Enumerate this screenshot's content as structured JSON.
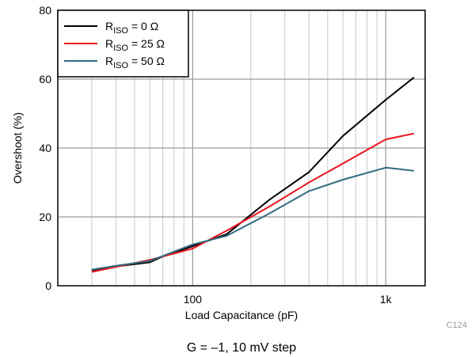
{
  "chart_data": {
    "type": "line",
    "title": "",
    "xlabel": "Load Capacitance (pF)",
    "ylabel": "Overshoot (%)",
    "x_scale": "log",
    "xlim": [
      20,
      1600
    ],
    "ylim": [
      0,
      80
    ],
    "x_ticks": [
      {
        "value": 100,
        "label": "100"
      },
      {
        "value": 1000,
        "label": "1k"
      }
    ],
    "y_ticks": [
      0,
      20,
      40,
      60,
      80
    ],
    "grid": true,
    "legend_position": "top-left",
    "series": [
      {
        "name_main": "R",
        "name_sub": "ISO",
        "name_rest": " = 0 Ω",
        "color": "#000000",
        "points": [
          [
            30,
            4.5
          ],
          [
            40,
            5.6
          ],
          [
            60,
            6.8
          ],
          [
            70,
            8.5
          ],
          [
            100,
            11.5
          ],
          [
            150,
            15.0
          ],
          [
            250,
            25.0
          ],
          [
            400,
            33.0
          ],
          [
            600,
            43.5
          ],
          [
            1000,
            54.0
          ],
          [
            1400,
            60.5
          ]
        ]
      },
      {
        "name_main": "R",
        "name_sub": "ISO",
        "name_rest": " = 25 Ω",
        "color": "#e8141e",
        "points": [
          [
            30,
            4.0
          ],
          [
            40,
            5.5
          ],
          [
            60,
            7.5
          ],
          [
            100,
            10.8
          ],
          [
            150,
            16.0
          ],
          [
            250,
            23.0
          ],
          [
            400,
            30.0
          ],
          [
            600,
            35.5
          ],
          [
            1000,
            42.5
          ],
          [
            1400,
            44.2
          ]
        ]
      },
      {
        "name_main": "R",
        "name_sub": "ISO",
        "name_rest": " = 50 Ω",
        "color": "#336b7f",
        "points": [
          [
            30,
            4.7
          ],
          [
            40,
            5.8
          ],
          [
            60,
            7.2
          ],
          [
            100,
            12.0
          ],
          [
            150,
            14.5
          ],
          [
            250,
            21.0
          ],
          [
            400,
            27.5
          ],
          [
            600,
            30.8
          ],
          [
            1000,
            34.3
          ],
          [
            1400,
            33.4
          ]
        ]
      }
    ]
  },
  "figure_code": "C124",
  "caption": "G = –1, 10 mV step"
}
